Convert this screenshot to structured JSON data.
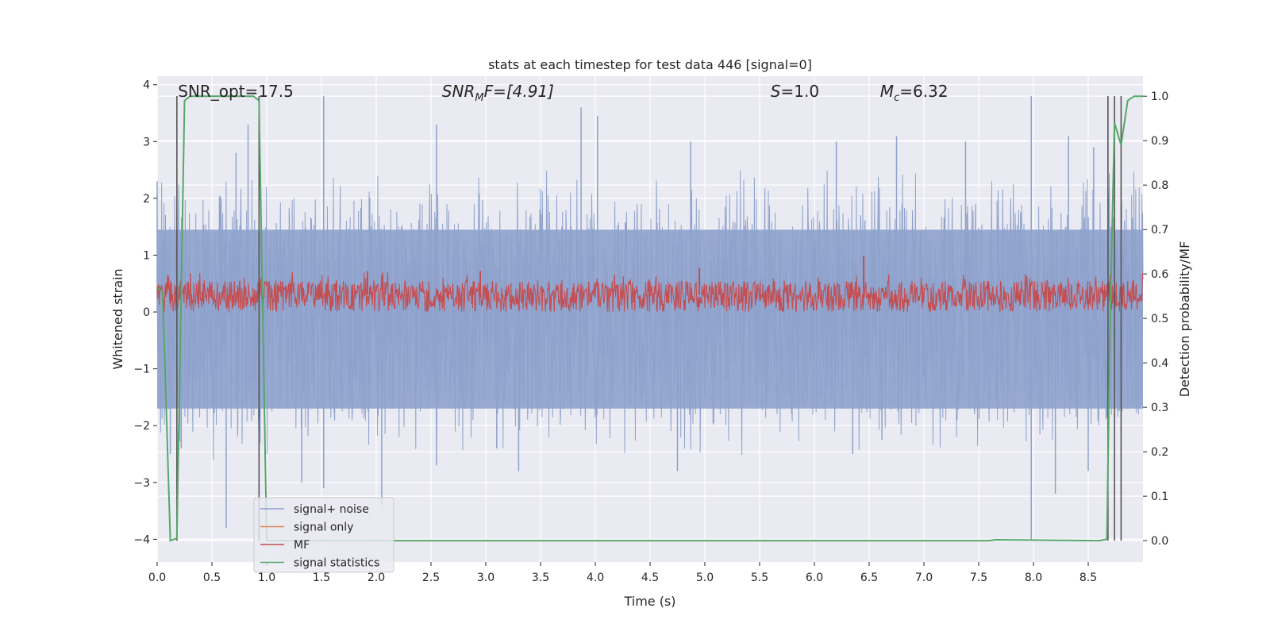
{
  "chart_data": {
    "type": "line",
    "title": "stats at each timestep for test data 446 [signal=0]",
    "xlabel": "Time (s)",
    "ylabel": "Whitened strain",
    "y2label": "Detection probability/MF",
    "xlim": [
      0.0,
      9.0
    ],
    "ylim": [
      -4.4,
      4.15
    ],
    "y2lim": [
      -0.048,
      1.045
    ],
    "xticks": [
      "0.0",
      "0.5",
      "1.0",
      "1.5",
      "2.0",
      "2.5",
      "3.0",
      "3.5",
      "4.0",
      "4.5",
      "5.0",
      "5.5",
      "6.0",
      "6.5",
      "7.0",
      "7.5",
      "8.0",
      "8.5"
    ],
    "yticks": [
      "−4",
      "−3",
      "−2",
      "−1",
      "0",
      "1",
      "2",
      "3",
      "4"
    ],
    "y2ticks": [
      "0.0",
      "0.1",
      "0.2",
      "0.3",
      "0.4",
      "0.5",
      "0.6",
      "0.7",
      "0.8",
      "0.9",
      "1.0"
    ],
    "grid": true,
    "legend_position": "lower-left",
    "annotations": [
      {
        "text": "SNR_opt=17.5",
        "x": 0.19
      },
      {
        "text": "SNR",
        "sub": "M",
        "suffix": "F=[4.91]",
        "italic": true,
        "x": 2.6
      },
      {
        "text": "S",
        "suffix": "=1.0",
        "italic": true,
        "x": 5.6
      },
      {
        "text": "M",
        "sub": "c",
        "suffix": "=6.32",
        "italic": true,
        "x": 6.6
      }
    ],
    "vlines": [
      0.18,
      0.93,
      8.68,
      8.74,
      8.8
    ],
    "series": [
      {
        "name": "signal+ noise",
        "axis": "left",
        "color": "#8ea2cc",
        "kind": "noise",
        "band": [
          -1.7,
          1.45
        ],
        "spikes": [
          {
            "x": 0.0,
            "y": 2.3
          },
          {
            "x": 0.12,
            "y": -2.5
          },
          {
            "x": 0.22,
            "y": -2.4
          },
          {
            "x": 0.63,
            "y": -3.8
          },
          {
            "x": 0.72,
            "y": 2.8
          },
          {
            "x": 0.83,
            "y": 3.3
          },
          {
            "x": 1.32,
            "y": -3.0
          },
          {
            "x": 1.52,
            "y": 3.8
          },
          {
            "x": 1.52,
            "y": -3.1
          },
          {
            "x": 2.05,
            "y": -3.4
          },
          {
            "x": 2.55,
            "y": 3.3
          },
          {
            "x": 2.55,
            "y": -2.7
          },
          {
            "x": 3.1,
            "y": -2.4
          },
          {
            "x": 3.3,
            "y": -2.8
          },
          {
            "x": 3.87,
            "y": 3.6
          },
          {
            "x": 4.02,
            "y": 3.45
          },
          {
            "x": 4.75,
            "y": -2.8
          },
          {
            "x": 4.87,
            "y": 3.0
          },
          {
            "x": 6.2,
            "y": 3.0
          },
          {
            "x": 6.35,
            "y": -2.5
          },
          {
            "x": 6.75,
            "y": 3.1
          },
          {
            "x": 7.38,
            "y": 3.0
          },
          {
            "x": 7.98,
            "y": 3.8
          },
          {
            "x": 7.98,
            "y": -4.0
          },
          {
            "x": 8.2,
            "y": -3.2
          },
          {
            "x": 8.32,
            "y": 3.1
          },
          {
            "x": 8.5,
            "y": -2.8
          },
          {
            "x": 8.55,
            "y": 2.9
          }
        ]
      },
      {
        "name": "signal only",
        "axis": "left",
        "color": "#dd8452",
        "kind": "flat",
        "values": [
          0.0
        ]
      },
      {
        "name": "MF",
        "axis": "left",
        "color": "#c44e52",
        "kind": "mf",
        "band": [
          0.0,
          0.55
        ],
        "spikes": [
          {
            "x": 6.45,
            "y": 0.98
          },
          {
            "x": 1.92,
            "y": 0.72
          },
          {
            "x": 2.95,
            "y": 0.72
          },
          {
            "x": 4.95,
            "y": 0.78
          }
        ]
      },
      {
        "name": "signal statistics",
        "axis": "right",
        "color": "#55a868",
        "kind": "line",
        "x": [
          0.0,
          0.05,
          0.12,
          0.18,
          0.25,
          0.3,
          0.88,
          0.93,
          1.0,
          1.05,
          7.6,
          7.65,
          8.6,
          8.67,
          8.7,
          8.74,
          8.8,
          8.86,
          8.92,
          9.0
        ],
        "y": [
          0.57,
          0.56,
          0.0,
          0.005,
          0.99,
          1.0,
          1.0,
          0.99,
          0.0,
          0.0,
          0.0,
          0.002,
          0.0,
          0.003,
          0.5,
          0.94,
          0.89,
          0.99,
          1.0,
          1.0
        ]
      }
    ]
  }
}
